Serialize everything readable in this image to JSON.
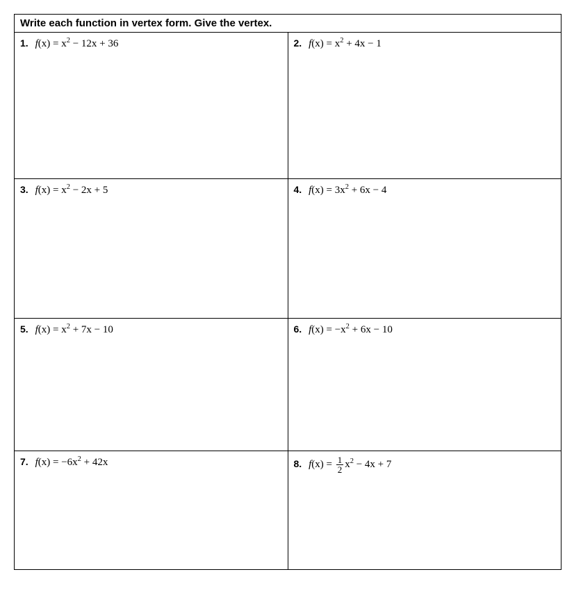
{
  "header": "Write each function in vertex form.  Give the vertex.",
  "problems": {
    "p1": {
      "num": "1.",
      "prefix": "f",
      "arg": "(x) = x",
      "sup": "2",
      "rest": " − 12x + 36"
    },
    "p2": {
      "num": "2.",
      "prefix": "f",
      "arg": "(x) = x",
      "sup": "2",
      "rest": " + 4x − 1"
    },
    "p3": {
      "num": "3.",
      "prefix": "f",
      "arg": "(x) = x",
      "sup": "2",
      "rest": " − 2x + 5"
    },
    "p4": {
      "num": "4.",
      "prefix": "f",
      "arg": "(x) = 3x",
      "sup": "2",
      "rest": " + 6x − 4"
    },
    "p5": {
      "num": "5.",
      "prefix": "f",
      "arg": "(x) = x",
      "sup": "2",
      "rest": " + 7x − 10"
    },
    "p6": {
      "num": "6.",
      "prefix": "f",
      "arg": "(x) = −x",
      "sup": "2",
      "rest": " + 6x − 10"
    },
    "p7": {
      "num": "7.",
      "prefix": "f",
      "arg": "(x) = −6x",
      "sup": "2",
      "rest": " + 42x"
    },
    "p8": {
      "num": "8.",
      "prefix": "f",
      "arg_pre": "(x) = ",
      "frac_top": "1",
      "frac_bot": "2",
      "arg_post": "x",
      "sup": "2",
      "rest": " − 4x + 7"
    }
  }
}
